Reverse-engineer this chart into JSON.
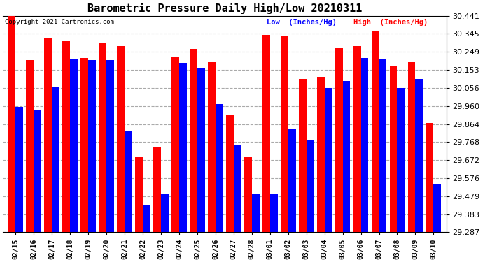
{
  "title": "Barometric Pressure Daily High/Low 20210311",
  "copyright": "Copyright 2021 Cartronics.com",
  "legend_low": "Low  (Inches/Hg)",
  "legend_high": "High  (Inches/Hg)",
  "low_color": "#0000ff",
  "high_color": "#ff0000",
  "bg_color": "#ffffff",
  "grid_color": "#aaaaaa",
  "yticks": [
    29.287,
    29.383,
    29.479,
    29.576,
    29.672,
    29.768,
    29.864,
    29.96,
    30.056,
    30.153,
    30.249,
    30.345,
    30.441
  ],
  "ymin": 29.287,
  "ymax": 30.441,
  "dates": [
    "02/15",
    "02/16",
    "02/17",
    "02/18",
    "02/19",
    "02/20",
    "02/21",
    "02/22",
    "02/23",
    "02/24",
    "02/25",
    "02/26",
    "02/27",
    "02/28",
    "03/01",
    "03/02",
    "03/03",
    "03/04",
    "03/05",
    "03/06",
    "03/07",
    "03/08",
    "03/09",
    "03/10"
  ],
  "highs": [
    30.441,
    30.205,
    30.32,
    30.31,
    30.215,
    30.295,
    30.28,
    29.69,
    29.74,
    30.22,
    30.265,
    30.195,
    29.91,
    29.69,
    30.34,
    30.335,
    30.105,
    30.115,
    30.27,
    30.28,
    30.36,
    30.17,
    30.195,
    29.87
  ],
  "lows": [
    29.955,
    29.94,
    30.06,
    30.21,
    30.205,
    30.205,
    29.825,
    29.43,
    29.495,
    30.19,
    30.165,
    29.97,
    29.75,
    29.495,
    29.49,
    29.84,
    29.78,
    30.055,
    30.095,
    30.215,
    30.21,
    30.055,
    30.105,
    29.545
  ]
}
